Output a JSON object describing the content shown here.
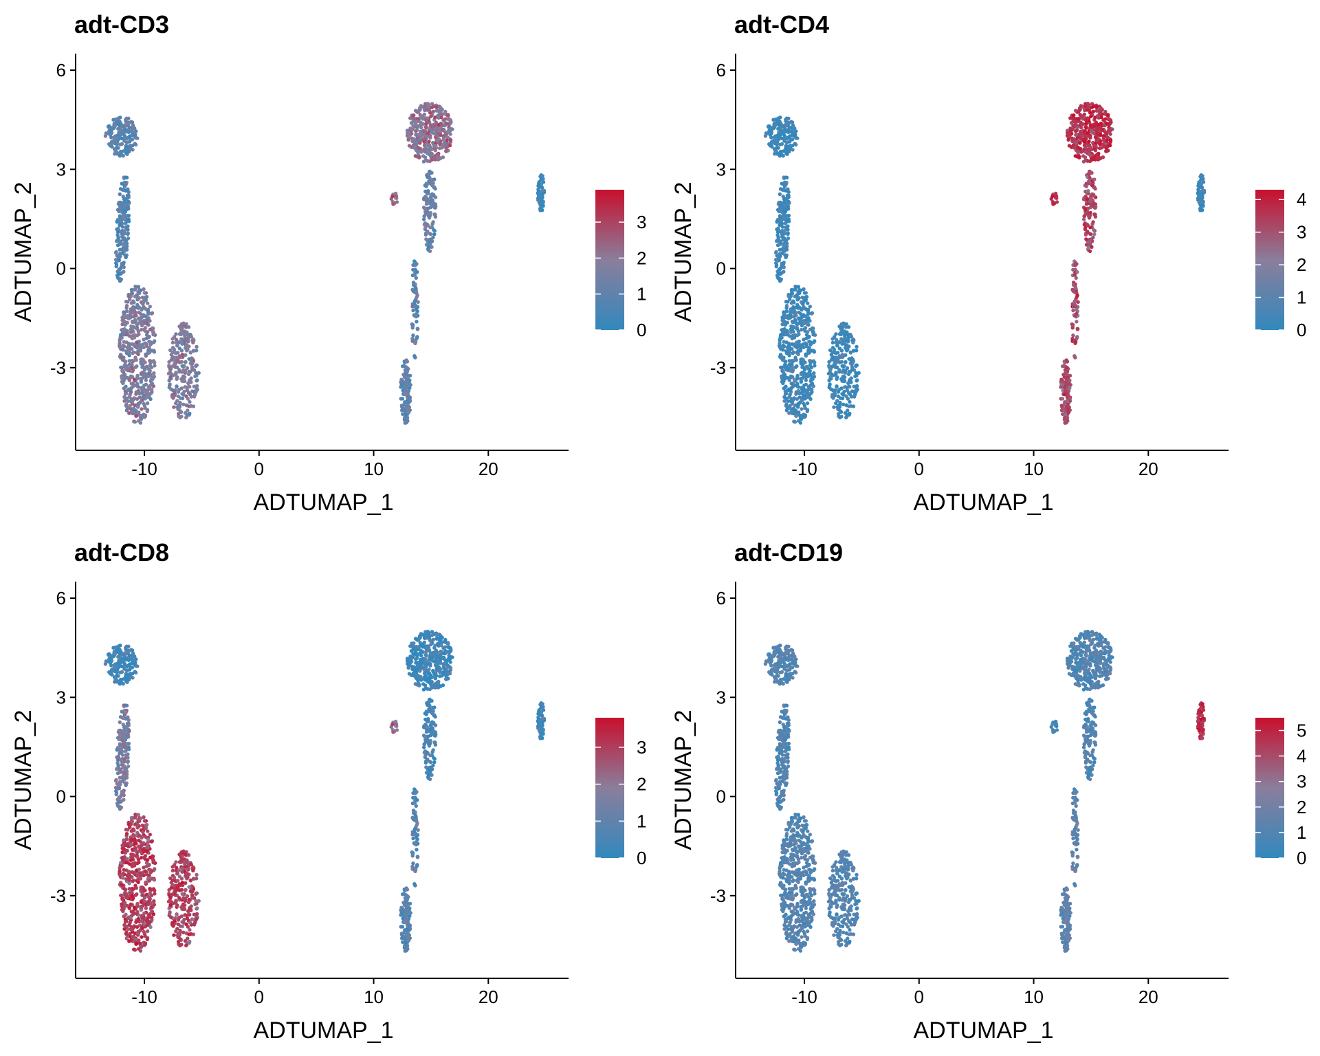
{
  "chart_data": [
    {
      "type": "scatter",
      "title": "adt-CD3",
      "xlabel": "ADTUMAP_1",
      "ylabel": "ADTUMAP_2",
      "xlim": [
        -16,
        27
      ],
      "ylim": [
        -5.5,
        6.5
      ],
      "xticks": [
        -10,
        0,
        10,
        20
      ],
      "yticks": [
        -3,
        0,
        3,
        6
      ],
      "grid": false,
      "legend": {
        "position": "right",
        "ticks": [
          0,
          1,
          2,
          3
        ],
        "range": [
          0,
          3.9
        ]
      },
      "colors": {
        "low": "#3288BD",
        "mid": "#8A7E9C",
        "high": "#C8102E"
      },
      "clusters": [
        {
          "name": "top-left",
          "value": 0.9
        },
        {
          "name": "left-stem",
          "value": 0.8
        },
        {
          "name": "bottom-left",
          "value": 1.7
        },
        {
          "name": "bottom-mid",
          "value": 1.8
        },
        {
          "name": "top-right",
          "value": 2.1
        },
        {
          "name": "right-stem",
          "value": 1.2
        },
        {
          "name": "right-bottom",
          "value": 1.0
        },
        {
          "name": "small-island",
          "value": 2.2
        },
        {
          "name": "far-right",
          "value": 0.1
        }
      ]
    },
    {
      "type": "scatter",
      "title": "adt-CD4",
      "xlabel": "ADTUMAP_1",
      "ylabel": "ADTUMAP_2",
      "xlim": [
        -16,
        27
      ],
      "ylim": [
        -5.5,
        6.5
      ],
      "xticks": [
        -10,
        0,
        10,
        20
      ],
      "yticks": [
        -3,
        0,
        3,
        6
      ],
      "grid": false,
      "legend": {
        "position": "right",
        "ticks": [
          0,
          1,
          2,
          3,
          4
        ],
        "range": [
          0,
          4.3
        ]
      },
      "colors": {
        "low": "#3288BD",
        "mid": "#8A7E9C",
        "high": "#C8102E"
      },
      "clusters": [
        {
          "name": "top-left",
          "value": 0.2
        },
        {
          "name": "left-stem",
          "value": 0.3
        },
        {
          "name": "bottom-left",
          "value": 0.3
        },
        {
          "name": "bottom-mid",
          "value": 0.3
        },
        {
          "name": "top-right",
          "value": 3.7
        },
        {
          "name": "right-stem",
          "value": 3.2
        },
        {
          "name": "right-bottom",
          "value": 3.1
        },
        {
          "name": "small-island",
          "value": 3.6
        },
        {
          "name": "far-right",
          "value": 0.2
        }
      ]
    },
    {
      "type": "scatter",
      "title": "adt-CD8",
      "xlabel": "ADTUMAP_1",
      "ylabel": "ADTUMAP_2",
      "xlim": [
        -16,
        27
      ],
      "ylim": [
        -5.5,
        6.5
      ],
      "xticks": [
        -10,
        0,
        10,
        20
      ],
      "yticks": [
        -3,
        0,
        3,
        6
      ],
      "grid": false,
      "legend": {
        "position": "right",
        "ticks": [
          0,
          1,
          2,
          3
        ],
        "range": [
          0,
          3.8
        ]
      },
      "colors": {
        "low": "#3288BD",
        "mid": "#8A7E9C",
        "high": "#C8102E"
      },
      "clusters": [
        {
          "name": "top-left",
          "value": 0.3
        },
        {
          "name": "left-stem",
          "value": 1.6
        },
        {
          "name": "bottom-left",
          "value": 3.0
        },
        {
          "name": "bottom-mid",
          "value": 3.0
        },
        {
          "name": "top-right",
          "value": 0.2
        },
        {
          "name": "right-stem",
          "value": 0.4
        },
        {
          "name": "right-bottom",
          "value": 0.8
        },
        {
          "name": "small-island",
          "value": 2.0
        },
        {
          "name": "far-right",
          "value": 0.2
        }
      ]
    },
    {
      "type": "scatter",
      "title": "adt-CD19",
      "xlabel": "ADTUMAP_1",
      "ylabel": "ADTUMAP_2",
      "xlim": [
        -16,
        27
      ],
      "ylim": [
        -5.5,
        6.5
      ],
      "xticks": [
        -10,
        0,
        10,
        20
      ],
      "yticks": [
        -3,
        0,
        3,
        6
      ],
      "grid": false,
      "legend": {
        "position": "right",
        "ticks": [
          0,
          1,
          2,
          3,
          4,
          5
        ],
        "range": [
          0,
          5.5
        ]
      },
      "colors": {
        "low": "#3288BD",
        "mid": "#8A7E9C",
        "high": "#C8102E"
      },
      "clusters": [
        {
          "name": "top-left",
          "value": 1.1
        },
        {
          "name": "left-stem",
          "value": 1.0
        },
        {
          "name": "bottom-left",
          "value": 1.1
        },
        {
          "name": "bottom-mid",
          "value": 1.1
        },
        {
          "name": "top-right",
          "value": 1.0
        },
        {
          "name": "right-stem",
          "value": 0.9
        },
        {
          "name": "right-bottom",
          "value": 1.4
        },
        {
          "name": "small-island",
          "value": 0.4
        },
        {
          "name": "far-right",
          "value": 4.8
        }
      ]
    }
  ]
}
